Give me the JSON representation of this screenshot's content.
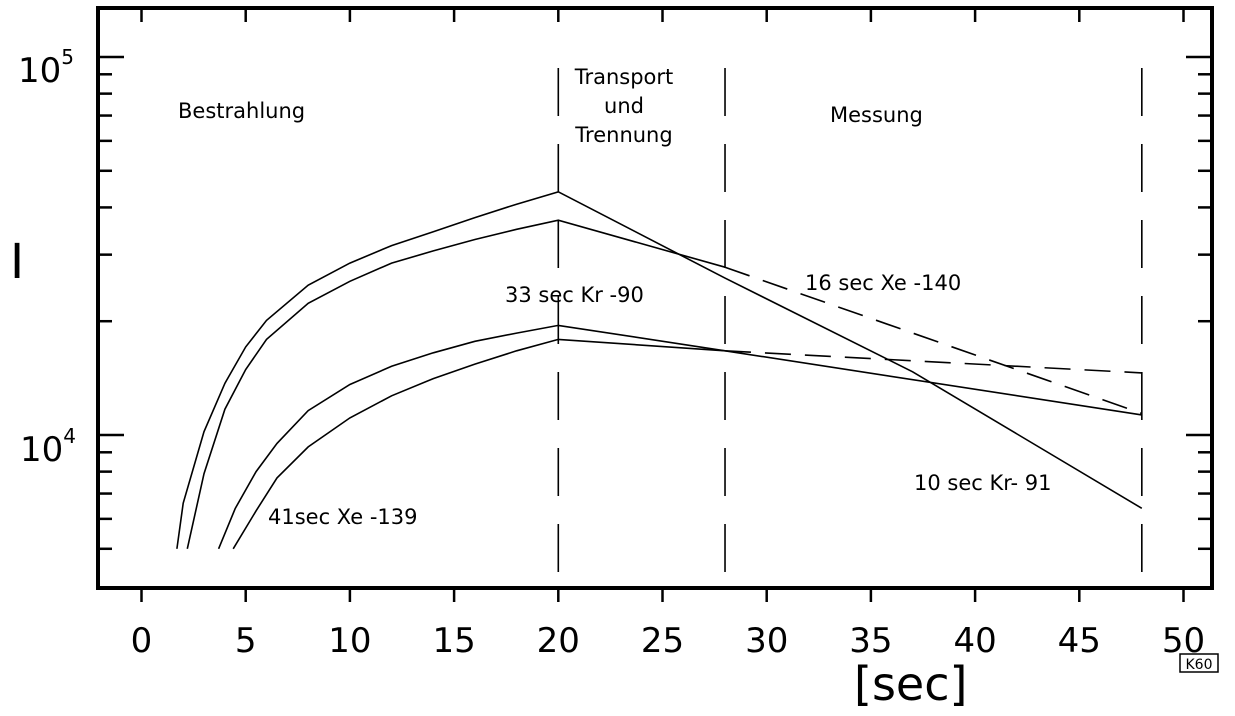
{
  "chart_data": {
    "type": "line",
    "title": "",
    "xlabel": "[sec]",
    "ylabel": "I",
    "xlim": [
      -2,
      51
    ],
    "ylim": [
      4500,
      120000
    ],
    "y_scale": "log",
    "grid": false,
    "x_ticks": [
      "0",
      "5",
      "10",
      "15",
      "20",
      "25",
      "30",
      "35",
      "40",
      "45",
      "50"
    ],
    "y_tick_labels": [
      {
        "base": "10",
        "exp": "4",
        "value": 10000
      },
      {
        "base": "10",
        "exp": "5",
        "value": 100000
      }
    ],
    "phase_boundaries": [
      20,
      28,
      48
    ],
    "phase_labels": [
      {
        "lines": [
          "Bestrahlung"
        ]
      },
      {
        "lines": [
          "Transport",
          "und",
          "Trennung"
        ]
      },
      {
        "lines": [
          "Messung"
        ]
      }
    ],
    "series": [
      {
        "name": "10 sec Kr- 91",
        "style": "solid",
        "x": [
          1.7,
          2,
          3,
          4,
          5,
          6,
          8,
          10,
          12,
          14,
          16,
          18,
          20,
          28,
          37,
          48
        ],
        "y": [
          5000,
          6600,
          10200,
          13700,
          17100,
          20100,
          24900,
          28500,
          31700,
          34500,
          37600,
          40800,
          44000,
          26000,
          14700,
          6400
        ]
      },
      {
        "name": "33 sec Kr -90",
        "style": "solid",
        "x": [
          2.2,
          3,
          4,
          5,
          6,
          8,
          10,
          12,
          14,
          16,
          18,
          20,
          28
        ],
        "y": [
          5000,
          7900,
          11700,
          14900,
          17900,
          22300,
          25500,
          28500,
          30700,
          32900,
          35000,
          37000,
          27800
        ]
      },
      {
        "name": "16 sec Xe -140",
        "style": "dashed",
        "x": [
          28,
          48
        ],
        "y": [
          27800,
          11400
        ]
      },
      {
        "name": "",
        "style": "solid",
        "x": [
          3.7,
          4.5,
          5.5,
          6.5,
          8,
          10,
          12,
          14,
          16,
          18,
          20,
          28
        ],
        "y": [
          5000,
          6400,
          8000,
          9500,
          11600,
          13600,
          15200,
          16500,
          17700,
          18600,
          19500,
          16700
        ]
      },
      {
        "name": "41sec Xe -139",
        "style": "solid",
        "x": [
          4.4,
          5.5,
          6.5,
          8,
          10,
          12,
          14,
          16,
          18,
          20,
          28,
          48
        ],
        "y": [
          5000,
          6300,
          7700,
          9300,
          11100,
          12700,
          14100,
          15400,
          16700,
          17900,
          16700,
          11300
        ]
      },
      {
        "name": "",
        "style": "dashed",
        "x": [
          28,
          48
        ],
        "y": [
          16700,
          14600
        ]
      }
    ],
    "annotations": [
      {
        "text": "33 sec Kr -90",
        "x": 20.2,
        "y": 22400
      },
      {
        "text": "16 sec Xe -140",
        "x": 36.7,
        "y": 24300
      },
      {
        "text": "10 sec Kr- 91",
        "x": 43.8,
        "y": 7950
      },
      {
        "text": "41sec Xe -139",
        "x": 9.3,
        "y": 6200
      }
    ],
    "plate_id": "K60"
  }
}
